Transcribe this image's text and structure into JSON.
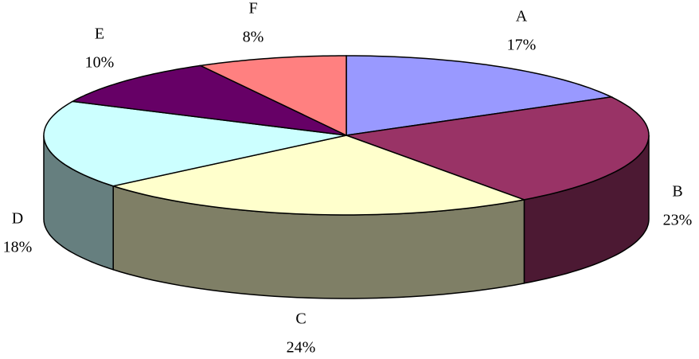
{
  "chart_data": {
    "type": "pie3d",
    "categories": [
      "A",
      "B",
      "C",
      "D",
      "E",
      "F"
    ],
    "values": [
      17,
      23,
      24,
      18,
      10,
      8
    ],
    "value_labels": [
      "17%",
      "23%",
      "24%",
      "18%",
      "10%",
      "8%"
    ],
    "colors": [
      "#9999ff",
      "#993366",
      "#ffffcc",
      "#ccffff",
      "#660066",
      "#ff8080"
    ]
  }
}
